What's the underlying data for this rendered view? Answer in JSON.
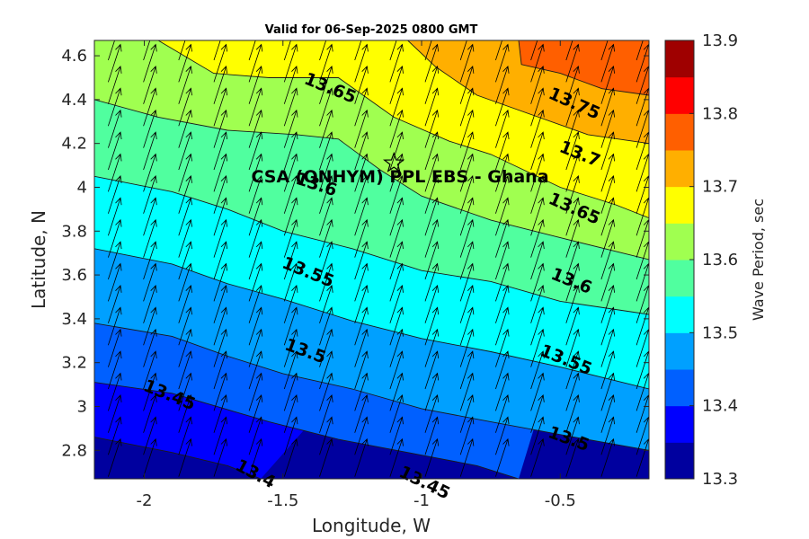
{
  "chart_data": {
    "type": "filled-contour",
    "title": "Valid for 06-Sep-2025 0800 GMT",
    "xlabel": "Longitude, W",
    "ylabel": "Latitude, N",
    "xlim": [
      -2.18,
      -0.18
    ],
    "ylim": [
      2.67,
      4.67
    ],
    "xticks": [
      -2,
      -1.5,
      -1,
      -0.5
    ],
    "xtick_labels": [
      "-2",
      "-1.5",
      "-1",
      "-0.5"
    ],
    "yticks": [
      2.8,
      3.0,
      3.2,
      3.4,
      3.6,
      3.8,
      4.0,
      4.2,
      4.4,
      4.6
    ],
    "ytick_labels": [
      "2.8",
      "3",
      "3.2",
      "3.4",
      "3.6",
      "3.8",
      "4",
      "4.2",
      "4.4",
      "4.6"
    ],
    "colorbar": {
      "label": "Wave Period, sec",
      "levels": [
        13.3,
        13.35,
        13.4,
        13.45,
        13.5,
        13.55,
        13.6,
        13.65,
        13.7,
        13.75,
        13.8,
        13.85,
        13.9
      ],
      "tick_labels": [
        "13.3",
        "13.4",
        "13.5",
        "13.6",
        "13.7",
        "13.8",
        "13.9"
      ],
      "tick_values": [
        13.3,
        13.4,
        13.5,
        13.6,
        13.7,
        13.8,
        13.9
      ],
      "colors": [
        "#00009f",
        "#0000ff",
        "#0060ff",
        "#00a0ff",
        "#00ffff",
        "#50ff9f",
        "#a0ff50",
        "#ffff00",
        "#ffaf00",
        "#ff5f00",
        "#ff0000",
        "#9f0000"
      ]
    },
    "contours": [
      {
        "level": 13.35,
        "points": [
          [
            -2.18,
            2.86
          ],
          [
            -1.9,
            2.79
          ],
          [
            -1.7,
            2.73
          ],
          [
            -1.58,
            2.67
          ]
        ]
      },
      {
        "level": 13.4,
        "points": [
          [
            -2.18,
            3.11
          ],
          [
            -1.9,
            3.06
          ],
          [
            -1.55,
            2.93
          ],
          [
            -1.3,
            2.85
          ],
          [
            -1.05,
            2.79
          ],
          [
            -0.8,
            2.73
          ],
          [
            -0.65,
            2.67
          ]
        ]
      },
      {
        "level": 13.45,
        "points": [
          [
            -2.18,
            3.38
          ],
          [
            -1.9,
            3.32
          ],
          [
            -1.7,
            3.23
          ],
          [
            -1.5,
            3.15
          ],
          [
            -1.25,
            3.08
          ],
          [
            -1.0,
            2.99
          ],
          [
            -0.75,
            2.93
          ],
          [
            -0.45,
            2.86
          ],
          [
            -0.18,
            2.8
          ]
        ]
      },
      {
        "level": 13.5,
        "points": [
          [
            -2.18,
            3.72
          ],
          [
            -1.9,
            3.65
          ],
          [
            -1.7,
            3.56
          ],
          [
            -1.5,
            3.49
          ],
          [
            -1.25,
            3.39
          ],
          [
            -1.0,
            3.31
          ],
          [
            -0.75,
            3.25
          ],
          [
            -0.5,
            3.18
          ],
          [
            -0.18,
            3.08
          ]
        ]
      },
      {
        "level": 13.55,
        "points": [
          [
            -2.18,
            4.05
          ],
          [
            -1.9,
            3.98
          ],
          [
            -1.7,
            3.9
          ],
          [
            -1.5,
            3.8
          ],
          [
            -1.25,
            3.72
          ],
          [
            -1.0,
            3.62
          ],
          [
            -0.75,
            3.57
          ],
          [
            -0.5,
            3.48
          ],
          [
            -0.18,
            3.42
          ]
        ]
      },
      {
        "level": 13.6,
        "points": [
          [
            -2.18,
            4.4
          ],
          [
            -1.95,
            4.32
          ],
          [
            -1.7,
            4.26
          ],
          [
            -1.45,
            4.24
          ],
          [
            -1.3,
            4.22
          ],
          [
            -1.15,
            4.08
          ],
          [
            -1.0,
            3.96
          ],
          [
            -0.75,
            3.85
          ],
          [
            -0.5,
            3.77
          ],
          [
            -0.18,
            3.67
          ]
        ]
      },
      {
        "level": 13.65,
        "points": [
          [
            -1.95,
            4.67
          ],
          [
            -1.75,
            4.52
          ],
          [
            -1.55,
            4.5
          ],
          [
            -1.3,
            4.5
          ],
          [
            -1.1,
            4.32
          ],
          [
            -0.9,
            4.21
          ],
          [
            -0.75,
            4.15
          ],
          [
            -0.5,
            4.0
          ],
          [
            -0.3,
            3.92
          ],
          [
            -0.18,
            3.86
          ]
        ]
      },
      {
        "level": 13.7,
        "points": [
          [
            -1.05,
            4.67
          ],
          [
            -0.95,
            4.55
          ],
          [
            -0.8,
            4.42
          ],
          [
            -0.6,
            4.33
          ],
          [
            -0.4,
            4.24
          ],
          [
            -0.18,
            4.2
          ]
        ]
      },
      {
        "level": 13.75,
        "points": [
          [
            -0.65,
            4.67
          ],
          [
            -0.64,
            4.56
          ],
          [
            -0.5,
            4.52
          ],
          [
            -0.35,
            4.45
          ],
          [
            -0.18,
            4.42
          ]
        ]
      }
    ],
    "contour_labels": [
      {
        "text": "13.65",
        "x": -1.33,
        "y": 4.45,
        "angle": 22
      },
      {
        "text": "13.75",
        "x": -0.45,
        "y": 4.38,
        "angle": 24
      },
      {
        "text": "13.7",
        "x": -0.43,
        "y": 4.15,
        "angle": 22
      },
      {
        "text": "13.6",
        "x": -1.38,
        "y": 4.01,
        "angle": 18
      },
      {
        "text": "13.65",
        "x": -0.45,
        "y": 3.9,
        "angle": 24
      },
      {
        "text": "13.55",
        "x": -1.41,
        "y": 3.61,
        "angle": 22
      },
      {
        "text": "13.6",
        "x": -0.46,
        "y": 3.57,
        "angle": 22
      },
      {
        "text": "13.5",
        "x": -1.42,
        "y": 3.25,
        "angle": 20
      },
      {
        "text": "13.55",
        "x": -0.48,
        "y": 3.21,
        "angle": 22
      },
      {
        "text": "13.45",
        "x": -1.91,
        "y": 3.05,
        "angle": 22
      },
      {
        "text": "13.5",
        "x": -0.47,
        "y": 2.85,
        "angle": 20
      },
      {
        "text": "13.4",
        "x": -1.6,
        "y": 2.69,
        "angle": 28
      },
      {
        "text": "13.45",
        "x": -0.99,
        "y": 2.65,
        "angle": 26
      }
    ],
    "vector_field": {
      "x_start": -2.13,
      "x_step": 0.127,
      "x_count": 16,
      "y_start": 2.68,
      "y_step": 0.1,
      "y_count": 20,
      "direction_deg": 18,
      "description": "uniform wave direction arrows"
    },
    "marker": {
      "label": "CSA (ONHYM) PPL EBS  - Ghana",
      "x": -1.1,
      "y": 4.11,
      "symbol": "star"
    }
  }
}
